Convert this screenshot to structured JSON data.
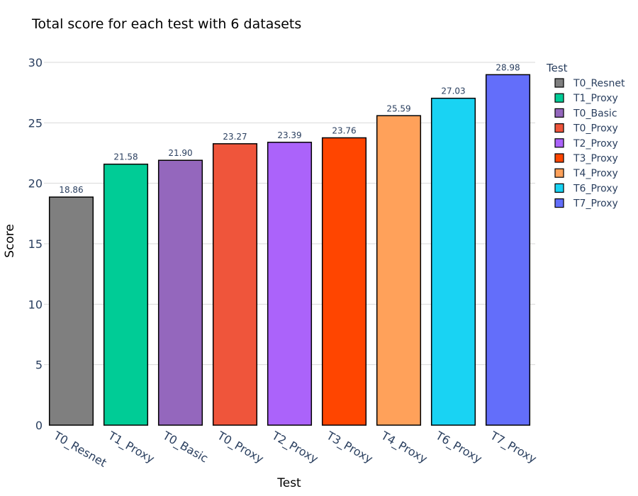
{
  "chart_data": {
    "type": "bar",
    "title": "Total score for each test with 6 datasets",
    "xlabel": "Test",
    "ylabel": "Score",
    "ylim": [
      0,
      30
    ],
    "yticks": [
      0,
      5,
      10,
      15,
      20,
      25,
      30
    ],
    "grid": true,
    "categories": [
      "T0_Resnet",
      "T1_Proxy",
      "T0_Basic",
      "T0_Proxy",
      "T2_Proxy",
      "T3_Proxy",
      "T4_Proxy",
      "T6_Proxy",
      "T7_Proxy"
    ],
    "values": [
      18.86,
      21.58,
      21.9,
      23.27,
      23.39,
      23.76,
      25.59,
      27.03,
      28.98
    ],
    "labels": [
      "18.86",
      "21.58",
      "21.90",
      "23.27",
      "23.39",
      "23.76",
      "25.59",
      "27.03",
      "28.98"
    ],
    "colors": [
      "#7f7f7f",
      "#00cc96",
      "#9467bd",
      "#ef553b",
      "#ab63fa",
      "#ff4500",
      "#ffa15a",
      "#19d3f3",
      "#636efa"
    ],
    "legend": {
      "title": "Test",
      "position": "right",
      "entries": [
        "T0_Resnet",
        "T1_Proxy",
        "T0_Basic",
        "T0_Proxy",
        "T2_Proxy",
        "T3_Proxy",
        "T4_Proxy",
        "T6_Proxy",
        "T7_Proxy"
      ]
    }
  }
}
